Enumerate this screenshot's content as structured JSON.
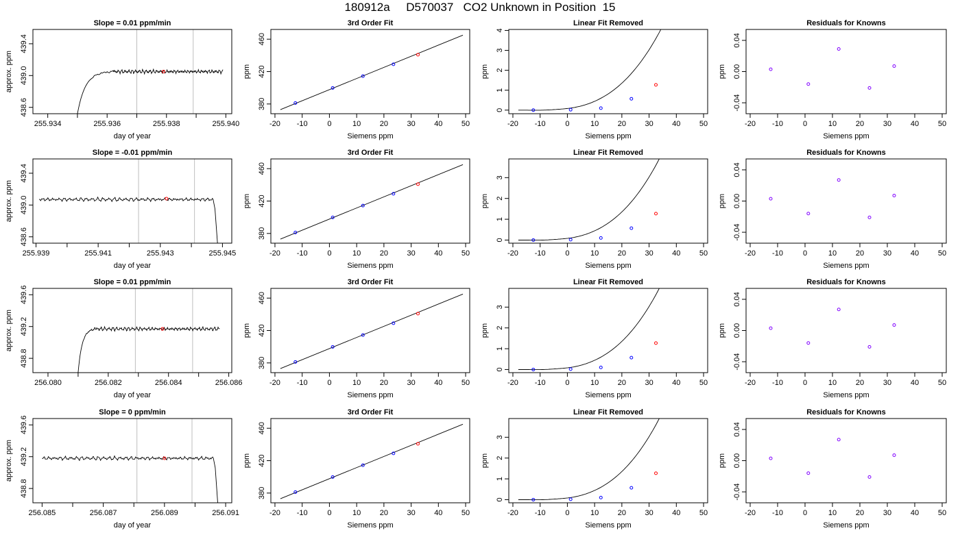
{
  "title": "180912a     D570037   CO2 Unknown in Position  15",
  "colors": {
    "known_points": "#0000ff",
    "unknown_point": "#ff0000",
    "residual_points": "#8000ff",
    "marker_lines": "#bebebe",
    "curve": "#000000"
  },
  "chart_data": [
    {
      "type": "line",
      "row": 1,
      "title": "Slope =  0.01  ppm/min",
      "xlabel": "day of year",
      "ylabel": "approx. ppm",
      "xlim": [
        255.9335,
        255.9402
      ],
      "ylim": [
        438.52,
        439.58
      ],
      "xticks": [
        "255.934",
        "255.936",
        "255.938",
        "255.940"
      ],
      "xtick_values": [
        255.934,
        255.936,
        255.938,
        255.94
      ],
      "xminor": [
        255.935,
        255.937,
        255.939
      ],
      "yticks": [
        "438.6",
        "439.0",
        "439.4"
      ],
      "ytick_values": [
        438.6,
        439.0,
        439.4
      ],
      "vlines": [
        255.937,
        255.9389
      ],
      "trace": {
        "start": 255.935,
        "rise_end": 255.9362,
        "end": 255.9399,
        "level": 439.05,
        "bottom": 438.52
      },
      "unknown_point": {
        "x": 255.9379,
        "y": 439.05
      }
    },
    {
      "type": "line",
      "row": 1,
      "title": "3rd Order Fit",
      "xlabel": "Siemens ppm",
      "ylabel": "ppm",
      "xlim": [
        -21.5,
        51.5
      ],
      "ylim": [
        368,
        472
      ],
      "xticks": [
        "-20",
        "-10",
        "0",
        "10",
        "20",
        "30",
        "40",
        "50"
      ],
      "xtick_values": [
        -20,
        -10,
        0,
        10,
        20,
        30,
        40,
        50
      ],
      "yticks": [
        "380",
        "420",
        "460"
      ],
      "ytick_values": [
        380,
        420,
        460
      ],
      "fit": {
        "x0": -18,
        "x1": 49,
        "y0": 373,
        "y1": 465
      },
      "known_points": [
        {
          "x": -12.5,
          "y": 381.2
        },
        {
          "x": 1.2,
          "y": 399.8
        },
        {
          "x": 12.3,
          "y": 414.4
        },
        {
          "x": 23.5,
          "y": 429.0
        }
      ],
      "unknown_point": {
        "x": 32.5,
        "y": 440.8
      }
    },
    {
      "type": "line",
      "row": 1,
      "title": "Linear Fit Removed",
      "xlabel": "Siemens ppm",
      "ylabel": "ppm",
      "xlim": [
        -21.5,
        51.5
      ],
      "ylim": [
        -0.18,
        4.05
      ],
      "xticks": [
        "-20",
        "-10",
        "0",
        "10",
        "20",
        "30",
        "40",
        "50"
      ],
      "xtick_values": [
        -20,
        -10,
        0,
        10,
        20,
        30,
        40,
        50
      ],
      "yticks": [
        "0",
        "1",
        "2",
        "3",
        "4"
      ],
      "ytick_values": [
        0,
        1,
        2,
        3,
        4
      ],
      "known_points": [
        {
          "x": -12.5,
          "y": 0.0
        },
        {
          "x": 1.2,
          "y": 0.02
        },
        {
          "x": 12.3,
          "y": 0.1
        },
        {
          "x": 23.5,
          "y": 0.57
        }
      ],
      "unknown_point": {
        "x": 32.5,
        "y": 1.27
      }
    },
    {
      "type": "scatter",
      "row": 1,
      "title": "Residuals for Knowns",
      "xlabel": "Siemens ppm",
      "ylabel": "ppm",
      "xlim": [
        -21.5,
        51.5
      ],
      "ylim": [
        -0.054,
        0.054
      ],
      "xticks": [
        "-20",
        "-10",
        "0",
        "10",
        "20",
        "30",
        "40",
        "50"
      ],
      "xtick_values": [
        -20,
        -10,
        0,
        10,
        20,
        30,
        40,
        50
      ],
      "yticks": [
        "-0.04",
        "0.00",
        "0.04"
      ],
      "ytick_values": [
        -0.04,
        0.0,
        0.04
      ],
      "points": [
        {
          "x": -12.5,
          "y": 0.003
        },
        {
          "x": 1.2,
          "y": -0.016
        },
        {
          "x": 12.3,
          "y": 0.029
        },
        {
          "x": 23.5,
          "y": -0.021
        },
        {
          "x": 32.5,
          "y": 0.007
        }
      ]
    },
    {
      "type": "line",
      "row": 2,
      "title": "Slope =  -0.01  ppm/min",
      "xlabel": "day of year",
      "ylabel": "approx. ppm",
      "xlim": [
        255.9389,
        255.9453
      ],
      "ylim": [
        438.52,
        439.58
      ],
      "xticks": [
        "255.939",
        "255.941",
        "255.943",
        "255.945"
      ],
      "xtick_values": [
        255.939,
        255.941,
        255.943,
        255.945
      ],
      "xminor": [
        255.94,
        255.942,
        255.944
      ],
      "yticks": [
        "438.6",
        "439.0",
        "439.4"
      ],
      "ytick_values": [
        438.6,
        439.0,
        439.4
      ],
      "vlines": [
        255.9423,
        255.9441
      ],
      "trace": {
        "start": 255.9391,
        "end": 255.9447,
        "drop_start": 255.9447,
        "drop_end": 255.94485,
        "level": 439.07,
        "bottom": 438.52
      },
      "unknown_point": {
        "x": 255.9432,
        "y": 439.08
      }
    },
    {
      "type": "line",
      "row": 2,
      "title": "3rd Order Fit",
      "xlabel": "Siemens ppm",
      "ylabel": "ppm",
      "xlim": [
        -21.5,
        51.5
      ],
      "ylim": [
        368,
        472
      ],
      "xticks": [
        "-20",
        "-10",
        "0",
        "10",
        "20",
        "30",
        "40",
        "50"
      ],
      "xtick_values": [
        -20,
        -10,
        0,
        10,
        20,
        30,
        40,
        50
      ],
      "yticks": [
        "380",
        "420",
        "460"
      ],
      "ytick_values": [
        380,
        420,
        460
      ],
      "fit": {
        "x0": -18,
        "x1": 49,
        "y0": 373,
        "y1": 465
      },
      "known_points": [
        {
          "x": -12.5,
          "y": 381.2
        },
        {
          "x": 1.2,
          "y": 399.8
        },
        {
          "x": 12.3,
          "y": 414.4
        },
        {
          "x": 23.5,
          "y": 429.0
        }
      ],
      "unknown_point": {
        "x": 32.5,
        "y": 440.8
      }
    },
    {
      "type": "line",
      "row": 2,
      "title": "Linear Fit Removed",
      "xlabel": "Siemens ppm",
      "ylabel": "ppm",
      "xlim": [
        -21.5,
        51.5
      ],
      "ylim": [
        -0.15,
        3.9
      ],
      "xticks": [
        "-20",
        "-10",
        "0",
        "10",
        "20",
        "30",
        "40",
        "50"
      ],
      "xtick_values": [
        -20,
        -10,
        0,
        10,
        20,
        30,
        40,
        50
      ],
      "yticks": [
        "0",
        "1",
        "2",
        "3"
      ],
      "ytick_values": [
        0,
        1,
        2,
        3
      ],
      "known_points": [
        {
          "x": -12.5,
          "y": 0.0
        },
        {
          "x": 1.2,
          "y": 0.02
        },
        {
          "x": 12.3,
          "y": 0.1
        },
        {
          "x": 23.5,
          "y": 0.57
        }
      ],
      "unknown_point": {
        "x": 32.5,
        "y": 1.27
      }
    },
    {
      "type": "scatter",
      "row": 2,
      "title": "Residuals for Knowns",
      "xlabel": "Siemens ppm",
      "ylabel": "ppm",
      "xlim": [
        -21.5,
        51.5
      ],
      "ylim": [
        -0.054,
        0.054
      ],
      "xticks": [
        "-20",
        "-10",
        "0",
        "10",
        "20",
        "30",
        "40",
        "50"
      ],
      "xtick_values": [
        -20,
        -10,
        0,
        10,
        20,
        30,
        40,
        50
      ],
      "yticks": [
        "-0.04",
        "0.00",
        "0.04"
      ],
      "ytick_values": [
        -0.04,
        0.0,
        0.04
      ],
      "points": [
        {
          "x": -12.5,
          "y": 0.003
        },
        {
          "x": 1.2,
          "y": -0.016
        },
        {
          "x": 12.3,
          "y": 0.027
        },
        {
          "x": 23.5,
          "y": -0.021
        },
        {
          "x": 32.5,
          "y": 0.007
        }
      ]
    },
    {
      "type": "line",
      "row": 3,
      "title": "Slope =  0.01  ppm/min",
      "xlabel": "day of year",
      "ylabel": "approx. ppm",
      "xlim": [
        256.0795,
        256.0861
      ],
      "ylim": [
        438.62,
        439.68
      ],
      "xticks": [
        "256.080",
        "256.082",
        "256.084",
        "256.086"
      ],
      "xtick_values": [
        256.08,
        256.082,
        256.084,
        256.086
      ],
      "xminor": [
        256.081,
        256.083,
        256.085
      ],
      "yticks": [
        "438.8",
        "439.2",
        "439.6"
      ],
      "ytick_values": [
        438.8,
        439.2,
        439.6
      ],
      "vlines": [
        256.0829,
        256.0848
      ],
      "trace": {
        "start": 256.081,
        "rise_end": 256.0816,
        "end": 256.0857,
        "level": 439.17,
        "bottom": 438.62
      },
      "unknown_point": {
        "x": 256.0838,
        "y": 439.17
      }
    },
    {
      "type": "line",
      "row": 3,
      "title": "3rd Order Fit",
      "xlabel": "Siemens ppm",
      "ylabel": "ppm",
      "xlim": [
        -21.5,
        51.5
      ],
      "ylim": [
        368,
        472
      ],
      "xticks": [
        "-20",
        "-10",
        "0",
        "10",
        "20",
        "30",
        "40",
        "50"
      ],
      "xtick_values": [
        -20,
        -10,
        0,
        10,
        20,
        30,
        40,
        50
      ],
      "yticks": [
        "380",
        "420",
        "460"
      ],
      "ytick_values": [
        380,
        420,
        460
      ],
      "fit": {
        "x0": -18,
        "x1": 49,
        "y0": 373,
        "y1": 465
      },
      "known_points": [
        {
          "x": -12.5,
          "y": 381.2
        },
        {
          "x": 1.2,
          "y": 399.8
        },
        {
          "x": 12.3,
          "y": 414.4
        },
        {
          "x": 23.5,
          "y": 429.0
        }
      ],
      "unknown_point": {
        "x": 32.5,
        "y": 440.8
      }
    },
    {
      "type": "line",
      "row": 3,
      "title": "Linear Fit Removed",
      "xlabel": "Siemens ppm",
      "ylabel": "ppm",
      "xlim": [
        -21.5,
        51.5
      ],
      "ylim": [
        -0.15,
        3.9
      ],
      "xticks": [
        "-20",
        "-10",
        "0",
        "10",
        "20",
        "30",
        "40",
        "50"
      ],
      "xtick_values": [
        -20,
        -10,
        0,
        10,
        20,
        30,
        40,
        50
      ],
      "yticks": [
        "0",
        "1",
        "2",
        "3"
      ],
      "ytick_values": [
        0,
        1,
        2,
        3
      ],
      "known_points": [
        {
          "x": -12.5,
          "y": 0.0
        },
        {
          "x": 1.2,
          "y": 0.02
        },
        {
          "x": 12.3,
          "y": 0.1
        },
        {
          "x": 23.5,
          "y": 0.57
        }
      ],
      "unknown_point": {
        "x": 32.5,
        "y": 1.27
      }
    },
    {
      "type": "scatter",
      "row": 3,
      "title": "Residuals for Knowns",
      "xlabel": "Siemens ppm",
      "ylabel": "ppm",
      "xlim": [
        -21.5,
        51.5
      ],
      "ylim": [
        -0.054,
        0.054
      ],
      "xticks": [
        "-20",
        "-10",
        "0",
        "10",
        "20",
        "30",
        "40",
        "50"
      ],
      "xtick_values": [
        -20,
        -10,
        0,
        10,
        20,
        30,
        40,
        50
      ],
      "yticks": [
        "-0.04",
        "0.00",
        "0.04"
      ],
      "ytick_values": [
        -0.04,
        0.0,
        0.04
      ],
      "points": [
        {
          "x": -12.5,
          "y": 0.003
        },
        {
          "x": 1.2,
          "y": -0.016
        },
        {
          "x": 12.3,
          "y": 0.027
        },
        {
          "x": 23.5,
          "y": -0.021
        },
        {
          "x": 32.5,
          "y": 0.007
        }
      ]
    },
    {
      "type": "line",
      "row": 4,
      "title": "Slope =  0  ppm/min",
      "xlabel": "day of year",
      "ylabel": "approx. ppm",
      "xlim": [
        256.0847,
        256.0912
      ],
      "ylim": [
        438.62,
        439.68
      ],
      "xticks": [
        "256.085",
        "256.087",
        "256.089",
        "256.091"
      ],
      "xtick_values": [
        256.085,
        256.087,
        256.089,
        256.091
      ],
      "xminor": [
        256.086,
        256.088,
        256.09
      ],
      "yticks": [
        "438.8",
        "439.2",
        "439.6"
      ],
      "ytick_values": [
        438.8,
        439.2,
        439.6
      ],
      "vlines": [
        256.0881,
        256.0899
      ],
      "trace": {
        "start": 256.085,
        "end": 256.0906,
        "drop_start": 256.0906,
        "drop_end": 256.09075,
        "level": 439.18,
        "bottom": 438.62
      },
      "unknown_point": {
        "x": 256.089,
        "y": 439.18
      }
    },
    {
      "type": "line",
      "row": 4,
      "title": "3rd Order Fit",
      "xlabel": "Siemens ppm",
      "ylabel": "ppm",
      "xlim": [
        -21.5,
        51.5
      ],
      "ylim": [
        368,
        472
      ],
      "xticks": [
        "-20",
        "-10",
        "0",
        "10",
        "20",
        "30",
        "40",
        "50"
      ],
      "xtick_values": [
        -20,
        -10,
        0,
        10,
        20,
        30,
        40,
        50
      ],
      "yticks": [
        "380",
        "420",
        "460"
      ],
      "ytick_values": [
        380,
        420,
        460
      ],
      "fit": {
        "x0": -18,
        "x1": 49,
        "y0": 373,
        "y1": 465
      },
      "known_points": [
        {
          "x": -12.5,
          "y": 381.2
        },
        {
          "x": 1.2,
          "y": 399.8
        },
        {
          "x": 12.3,
          "y": 414.4
        },
        {
          "x": 23.5,
          "y": 429.0
        }
      ],
      "unknown_point": {
        "x": 32.5,
        "y": 440.8
      }
    },
    {
      "type": "line",
      "row": 4,
      "title": "Linear Fit Removed",
      "xlabel": "Siemens ppm",
      "ylabel": "ppm",
      "xlim": [
        -21.5,
        51.5
      ],
      "ylim": [
        -0.15,
        3.9
      ],
      "xticks": [
        "-20",
        "-10",
        "0",
        "10",
        "20",
        "30",
        "40",
        "50"
      ],
      "xtick_values": [
        -20,
        -10,
        0,
        10,
        20,
        30,
        40,
        50
      ],
      "yticks": [
        "0",
        "1",
        "2",
        "3"
      ],
      "ytick_values": [
        0,
        1,
        2,
        3
      ],
      "known_points": [
        {
          "x": -12.5,
          "y": 0.0
        },
        {
          "x": 1.2,
          "y": 0.02
        },
        {
          "x": 12.3,
          "y": 0.1
        },
        {
          "x": 23.5,
          "y": 0.57
        }
      ],
      "unknown_point": {
        "x": 32.5,
        "y": 1.27
      }
    },
    {
      "type": "scatter",
      "row": 4,
      "title": "Residuals for Knowns",
      "xlabel": "Siemens ppm",
      "ylabel": "ppm",
      "xlim": [
        -21.5,
        51.5
      ],
      "ylim": [
        -0.054,
        0.054
      ],
      "xticks": [
        "-20",
        "-10",
        "0",
        "10",
        "20",
        "30",
        "40",
        "50"
      ],
      "xtick_values": [
        -20,
        -10,
        0,
        10,
        20,
        30,
        40,
        50
      ],
      "yticks": [
        "-0.04",
        "0.00",
        "0.04"
      ],
      "ytick_values": [
        -0.04,
        0.0,
        0.04
      ],
      "points": [
        {
          "x": -12.5,
          "y": 0.003
        },
        {
          "x": 1.2,
          "y": -0.016
        },
        {
          "x": 12.3,
          "y": 0.027
        },
        {
          "x": 23.5,
          "y": -0.021
        },
        {
          "x": 32.5,
          "y": 0.007
        }
      ]
    }
  ]
}
